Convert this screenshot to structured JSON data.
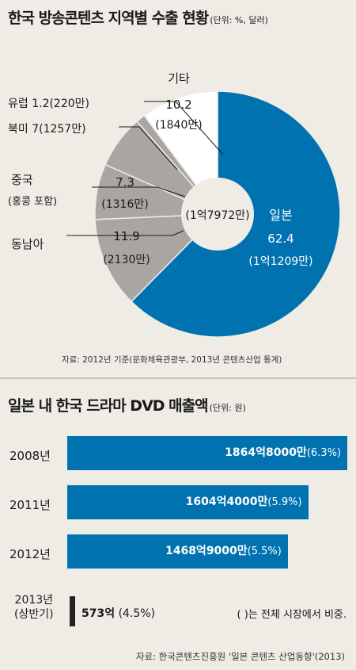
{
  "pie": {
    "title": "한국 방송콘텐츠 지역별 수출 현황",
    "unit": "(단위: %, 달러)",
    "center_label": "(1억7972만)",
    "source": "자료: 2012년 기준(문화체육관광부, 2013년 콘텐츠산업 통계)"
  },
  "bars": {
    "title": "일본 내 한국 드라마 DVD 매출액",
    "unit": "(단위: 원)",
    "note": "(   )는 전체 시장에서 비중.",
    "source": "자료: 한국콘텐츠진흥원 '일본 콘텐츠 산업동향'(2013)"
  },
  "colors": {
    "blue": "#0072b0",
    "gray": "#a8a5a3",
    "white": "#ffffff",
    "background": "#efece5"
  },
  "chart_data": [
    {
      "type": "pie",
      "title": "한국 방송콘텐츠 지역별 수출 현황",
      "unit": "%, 달러",
      "total": "1억7972만",
      "slices": [
        {
          "label": "일본",
          "value": 62.4,
          "amount": "1억1209만",
          "color": "#0072b0"
        },
        {
          "label": "동남아",
          "value": 11.9,
          "amount": "2130만",
          "color": "#a8a5a3"
        },
        {
          "label": "중국(홍콩 포함)",
          "value": 7.3,
          "amount": "1316만",
          "color": "#a8a5a3"
        },
        {
          "label": "북미",
          "value": 7,
          "amount": "1257만",
          "color": "#a8a5a3"
        },
        {
          "label": "유럽",
          "value": 1.2,
          "amount": "220만",
          "color": "#a8a5a3"
        },
        {
          "label": "기타",
          "value": 10.2,
          "amount": "1840만",
          "color": "#ffffff"
        }
      ]
    },
    {
      "type": "bar",
      "title": "일본 내 한국 드라마 DVD 매출액",
      "unit": "원",
      "categories": [
        "2008년",
        "2011년",
        "2012년",
        "2013년 (상반기)"
      ],
      "values": [
        186480000000,
        160440000000,
        146890000000,
        57300000000
      ],
      "value_labels": [
        "1864억8000만",
        "1604억4000만",
        "1468억9000만",
        "573억"
      ],
      "shares": [
        "(6.3%)",
        "(5.9%)",
        "(5.5%)",
        "(4.5%)"
      ]
    }
  ]
}
